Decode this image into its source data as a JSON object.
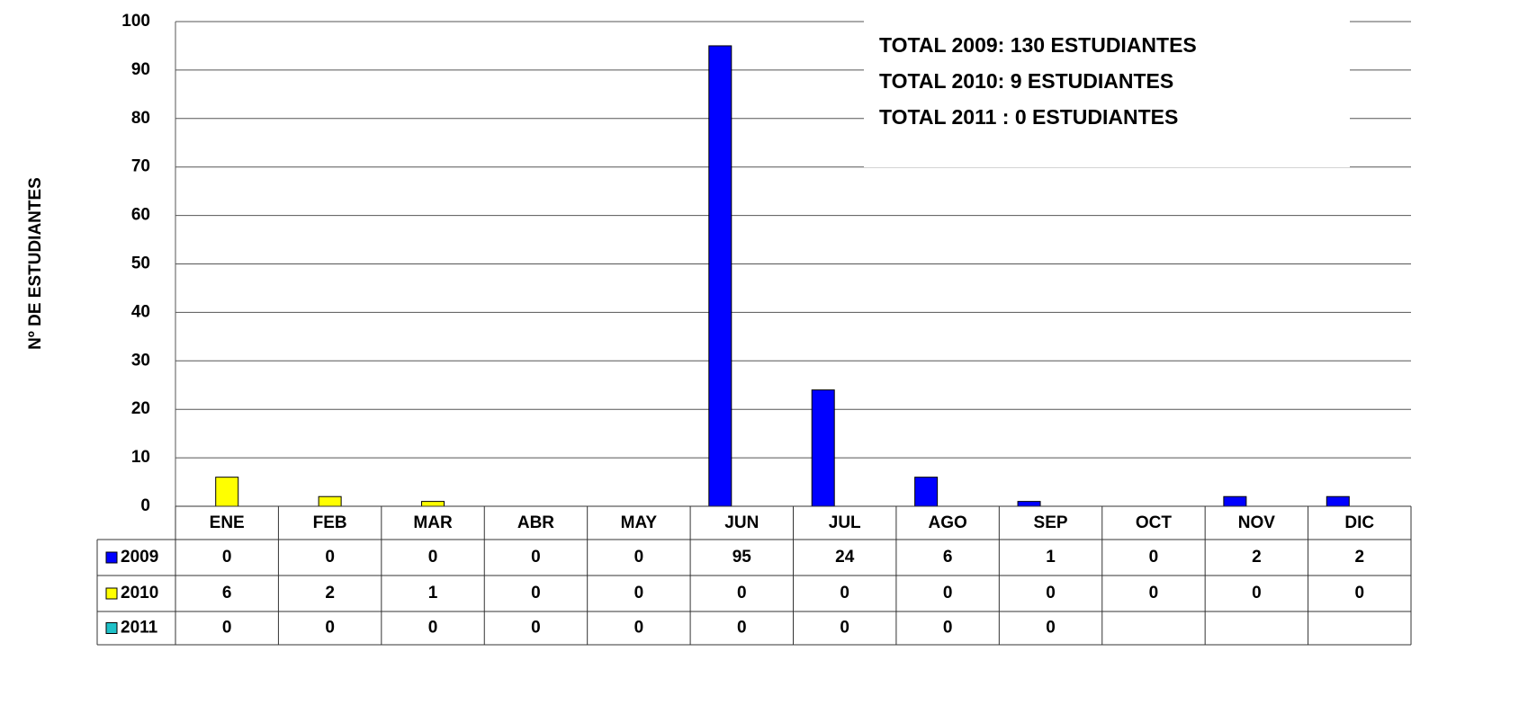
{
  "chart_data": {
    "type": "bar",
    "ylabel": "Nº DE ESTUDIANTES",
    "annotations": [
      "TOTAL 2009: 130 ESTUDIANTES",
      "TOTAL 2010: 9 ESTUDIANTES",
      "TOTAL 2011 : 0 ESTUDIANTES"
    ],
    "categories": [
      "ENE",
      "FEB",
      "MAR",
      "ABR",
      "MAY",
      "JUN",
      "JUL",
      "AGO",
      "SEP",
      "OCT",
      "NOV",
      "DIC"
    ],
    "series": [
      {
        "name": "2009",
        "color": "#0000ff",
        "values": [
          0,
          0,
          0,
          0,
          0,
          95,
          24,
          6,
          1,
          0,
          2,
          2
        ]
      },
      {
        "name": "2010",
        "color": "#ffff00",
        "values": [
          6,
          2,
          1,
          0,
          0,
          0,
          0,
          0,
          0,
          0,
          0,
          0
        ]
      },
      {
        "name": "2011",
        "color": "#1fc1c8",
        "values": [
          0,
          0,
          0,
          0,
          0,
          0,
          0,
          0,
          0,
          null,
          null,
          null
        ]
      }
    ],
    "ylim": [
      0,
      100
    ],
    "yticks": [
      0,
      10,
      20,
      30,
      40,
      50,
      60,
      70,
      80,
      90,
      100
    ],
    "grid": true
  }
}
